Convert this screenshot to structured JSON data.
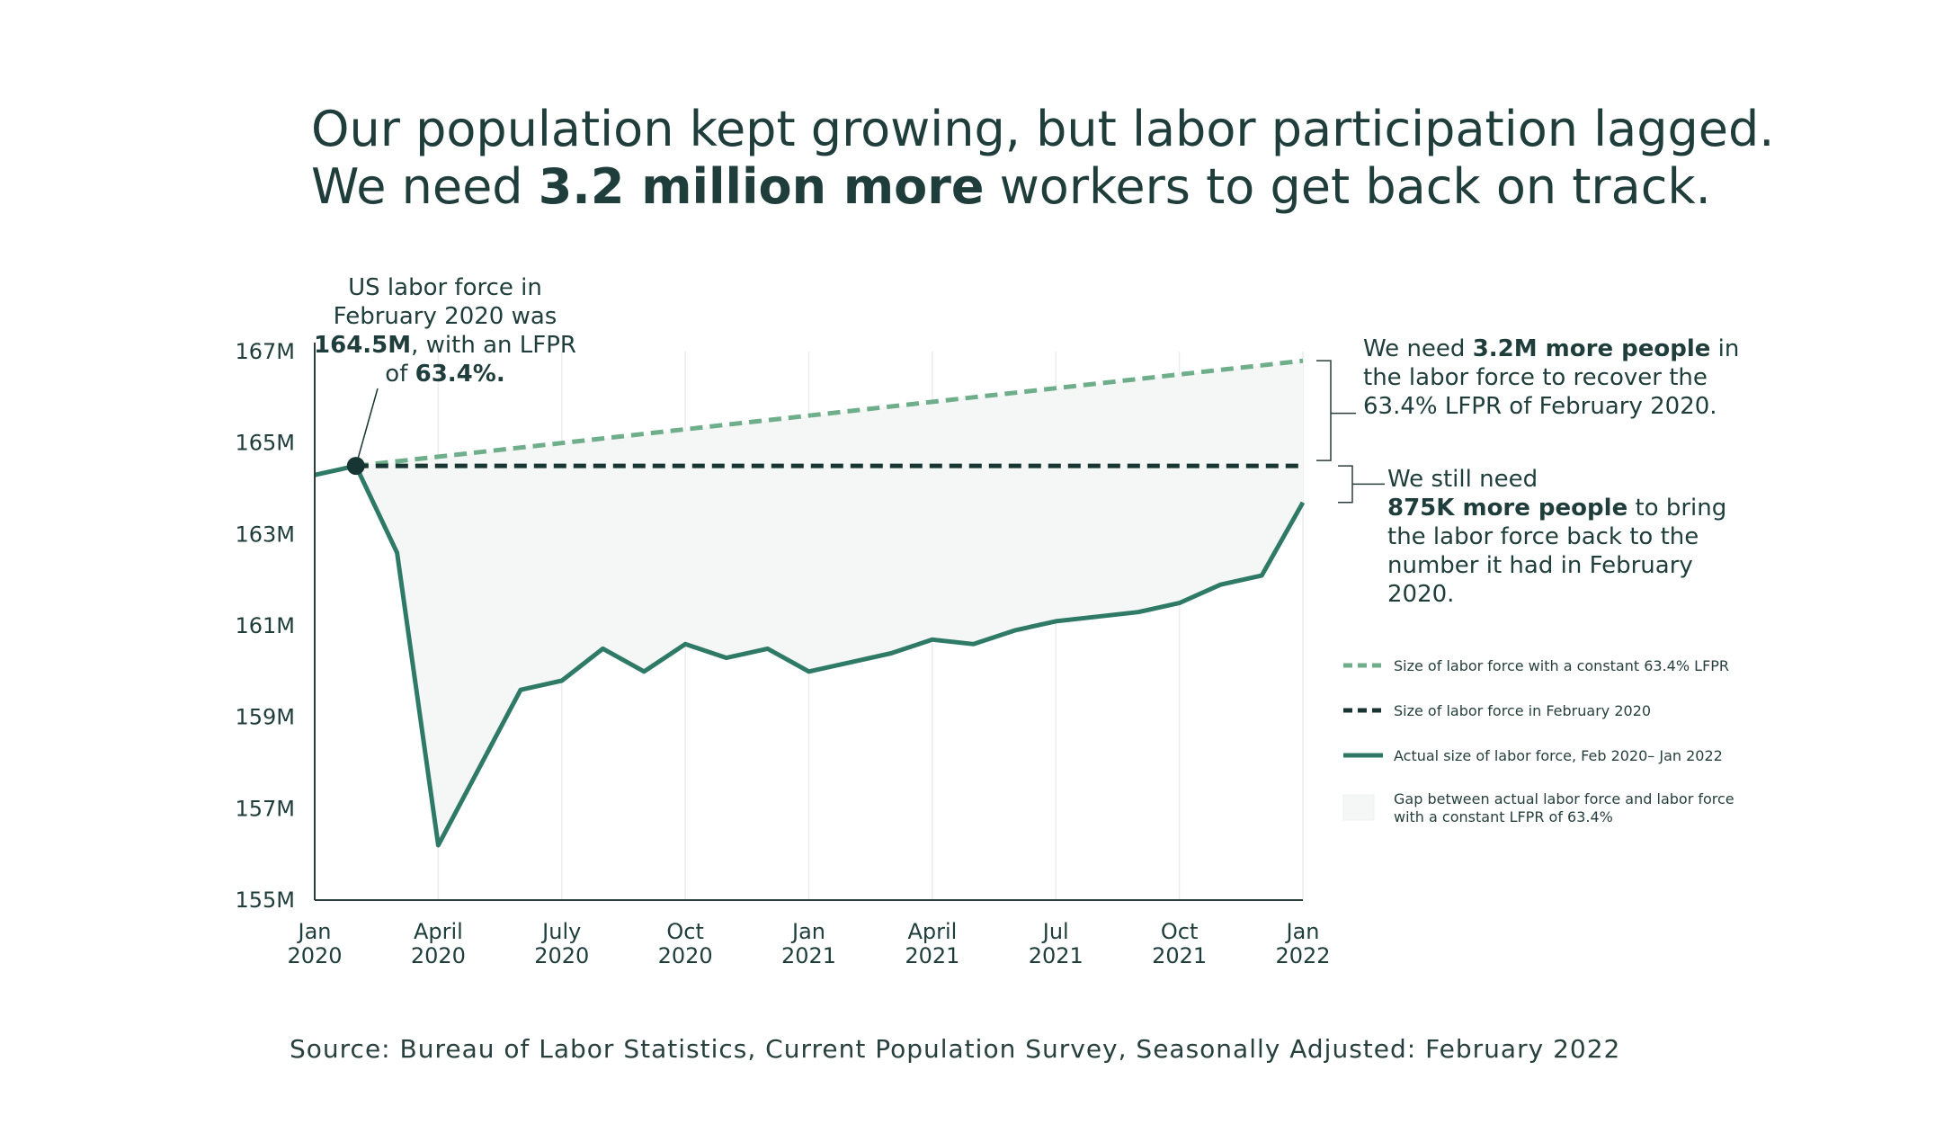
{
  "headline": {
    "line1": "Our population kept growing, but labor participation lagged.",
    "line2_pre": "We need ",
    "line2_bold": "3.2 million more",
    "line2_post": " workers to get back on track."
  },
  "annotations": {
    "feb2020": {
      "pre": "US labor force in February 2020 was ",
      "bold1": "164.5M",
      "mid": ", with an LFPR of ",
      "bold2": "63.4%."
    },
    "gap_lfpr": {
      "pre": "We need ",
      "bold": "3.2M more people",
      "post": " in the labor force to recover the 63.4% LFPR of February 2020."
    },
    "gap_feb": {
      "pre": "We still need ",
      "bold": "875K more people",
      "post": " to bring the labor force back to the number it had in February 2020."
    }
  },
  "source": "Source: Bureau of Labor Statistics, Current Population Survey, Seasonally Adjusted: February 2022",
  "colors": {
    "constant_lfpr": "#6fae8a",
    "feb_level": "#173532",
    "actual": "#2f7a66",
    "gap_fill": "#f5f7f6",
    "axis": "#2b3d3b",
    "grid": "#ececec"
  },
  "chart_data": {
    "type": "line",
    "ylim": [
      155,
      167
    ],
    "yticks": [
      {
        "value": 167,
        "label": "167M"
      },
      {
        "value": 165,
        "label": "165M"
      },
      {
        "value": 163,
        "label": "163M"
      },
      {
        "value": 161,
        "label": "161M"
      },
      {
        "value": 159,
        "label": "159M"
      },
      {
        "value": 157,
        "label": "157M"
      },
      {
        "value": 155,
        "label": "155M"
      }
    ],
    "xticks": [
      {
        "index": 0,
        "line1": "Jan",
        "line2": "2020"
      },
      {
        "index": 3,
        "line1": "April",
        "line2": "2020"
      },
      {
        "index": 6,
        "line1": "July",
        "line2": "2020"
      },
      {
        "index": 9,
        "line1": "Oct",
        "line2": "2020"
      },
      {
        "index": 12,
        "line1": "Jan",
        "line2": "2021"
      },
      {
        "index": 15,
        "line1": "April",
        "line2": "2021"
      },
      {
        "index": 18,
        "line1": "Jul",
        "line2": "2021"
      },
      {
        "index": 21,
        "line1": "Oct",
        "line2": "2021"
      },
      {
        "index": 24,
        "line1": "Jan",
        "line2": "2022"
      }
    ],
    "months": [
      "Jan 2020",
      "Feb 2020",
      "Mar 2020",
      "Apr 2020",
      "May 2020",
      "Jun 2020",
      "Jul 2020",
      "Aug 2020",
      "Sep 2020",
      "Oct 2020",
      "Nov 2020",
      "Dec 2020",
      "Jan 2021",
      "Feb 2021",
      "Mar 2021",
      "Apr 2021",
      "May 2021",
      "Jun 2021",
      "Jul 2021",
      "Aug 2021",
      "Sep 2021",
      "Oct 2021",
      "Nov 2021",
      "Dec 2021",
      "Jan 2022"
    ],
    "series": [
      {
        "name": "Size of labor force with a constant 63.4% LFPR",
        "key": "constant_lfpr",
        "start_index": 1,
        "values": [
          164.5,
          164.6,
          164.7,
          164.8,
          164.9,
          165.0,
          165.1,
          165.2,
          165.3,
          165.4,
          165.5,
          165.6,
          165.7,
          165.8,
          165.9,
          166.0,
          166.1,
          166.2,
          166.3,
          166.4,
          166.5,
          166.6,
          166.7,
          166.8
        ]
      },
      {
        "name": "Size of labor force in February 2020",
        "key": "feb_level",
        "start_index": 1,
        "values": [
          164.5,
          164.5,
          164.5,
          164.5,
          164.5,
          164.5,
          164.5,
          164.5,
          164.5,
          164.5,
          164.5,
          164.5,
          164.5,
          164.5,
          164.5,
          164.5,
          164.5,
          164.5,
          164.5,
          164.5,
          164.5,
          164.5,
          164.5,
          164.5
        ]
      },
      {
        "name": "Actual size of labor force, Feb 2020– Jan 2022",
        "key": "actual",
        "start_index": 0,
        "values": [
          164.3,
          164.5,
          162.6,
          156.2,
          157.9,
          159.6,
          159.8,
          160.5,
          160.0,
          160.6,
          160.3,
          160.5,
          160.0,
          160.2,
          160.4,
          160.7,
          160.6,
          160.9,
          161.1,
          161.2,
          161.3,
          161.5,
          161.9,
          162.1,
          163.7
        ]
      }
    ],
    "gap_legend_line1": "Gap between actual labor force and labor force",
    "gap_legend_line2": "with a constant LFPR of 63.4%",
    "legend_position": "right"
  }
}
